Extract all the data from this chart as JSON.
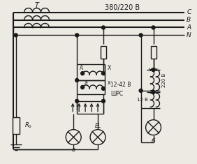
{
  "bg_color": "#ede9e3",
  "line_color": "#1a1a1a",
  "figsize": [
    2.82,
    2.35
  ],
  "dpi": 100,
  "bus_labels": [
    "C",
    "B",
    "A",
    "N"
  ],
  "label_380": "380/220 B",
  "label_T": "T"
}
